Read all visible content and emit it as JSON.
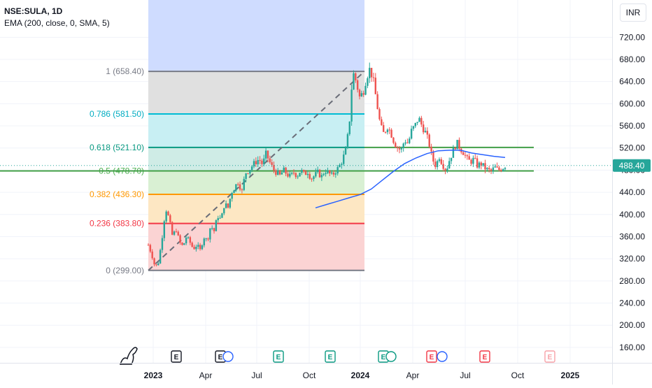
{
  "header": {
    "symbol": "NSE:SULA, 1D",
    "indicator": "EMA (200, close, 0, SMA, 5)"
  },
  "currency": "INR",
  "colors": {
    "up": "#26a69a",
    "down": "#ef5350",
    "ema": "#2962ff",
    "level_line": "#43a047",
    "last_price_bg": "#26a69a"
  },
  "chart_data": {
    "type": "candlestick",
    "price_axis_ticks": [
      "720.00",
      "680.00",
      "640.00",
      "600.00",
      "560.00",
      "520.00",
      "480.00",
      "440.00",
      "400.00",
      "360.00",
      "320.00",
      "280.00",
      "240.00",
      "200.00",
      "160.00"
    ],
    "price_axis_values": [
      720,
      680,
      640,
      600,
      560,
      520,
      480,
      440,
      400,
      360,
      320,
      280,
      240,
      200,
      160
    ],
    "time_axis_ticks": [
      "2023",
      "Apr",
      "Jul",
      "Oct",
      "2024",
      "Apr",
      "Jul",
      "Oct",
      "2025"
    ],
    "bold_time_ticks": [
      "2023",
      "2024",
      "2025"
    ],
    "last_price": {
      "label": "488.40",
      "value": 488.4
    },
    "fib_retracement": {
      "levels": [
        {
          "label": "1 (658.40)",
          "ratio": 1,
          "price": 658.4,
          "line": "#787b86",
          "fill": "#e0e0e0",
          "text": "#787b86"
        },
        {
          "label": "0.786 (581.50)",
          "ratio": 0.786,
          "price": 581.5,
          "line": "#00bcd4",
          "fill": "#c8eff3",
          "text": "#00acc1"
        },
        {
          "label": "0.618 (521.10)",
          "ratio": 0.618,
          "price": 521.1,
          "line": "#089981",
          "fill": "#cfece6",
          "text": "#089981"
        },
        {
          "label": "0.5 (478.70)",
          "ratio": 0.5,
          "price": 478.7,
          "line": "#4caf50",
          "fill": "#d9f0d3",
          "text": "#4caf50"
        },
        {
          "label": "0.382 (436.30)",
          "ratio": 0.382,
          "price": 436.3,
          "line": "#ff9800",
          "fill": "#fde7c3",
          "text": "#ff9800"
        },
        {
          "label": "0.236 (383.80)",
          "ratio": 0.236,
          "price": 383.8,
          "line": "#f23645",
          "fill": "#fbd3d3",
          "text": "#f23645"
        },
        {
          "label": "0 (299.00)",
          "ratio": 0,
          "price": 299.0,
          "line": "#787b86",
          "fill": "none",
          "text": "#787b86"
        }
      ],
      "trend_line": {
        "from_price": 299.0,
        "to_price": 658.4
      }
    },
    "horizontal_levels": [
      521.1,
      478.7
    ],
    "ema_path_prices": [
      412,
      418,
      424,
      430,
      436,
      446,
      462,
      478,
      492,
      502,
      510,
      515,
      516,
      516,
      511,
      508,
      505,
      503
    ],
    "price_path": [
      345,
      328,
      304,
      315,
      360,
      412,
      392,
      360,
      374,
      350,
      342,
      360,
      350,
      338,
      345,
      335,
      360,
      352,
      380,
      370,
      398,
      390,
      420,
      412,
      440,
      450,
      460,
      440,
      475,
      480,
      488,
      495,
      500,
      490,
      510,
      495,
      482,
      476,
      470,
      480,
      473,
      468,
      476,
      470,
      480,
      472,
      478,
      465,
      470,
      476,
      468,
      480,
      475,
      470,
      478,
      485,
      498,
      516,
      560,
      658,
      640,
      612,
      620,
      648,
      664,
      640,
      600,
      560,
      545,
      560,
      548,
      530,
      520,
      516,
      535,
      528,
      552,
      560,
      575,
      560,
      548,
      530,
      500,
      488,
      505,
      490,
      480,
      500,
      515,
      530,
      520,
      512,
      500,
      495,
      500,
      488,
      492,
      485,
      480,
      478,
      485,
      480,
      483,
      488
    ],
    "event_markers": [
      "dividend-icon",
      "earnings-E",
      "earnings-E-dividend",
      "earnings-E-green",
      "earnings-E-green",
      "earnings-E-green",
      "earnings-E-dividend-green",
      "earnings-E-red-dividend",
      "earnings-E-red",
      "earnings-E-future"
    ]
  }
}
